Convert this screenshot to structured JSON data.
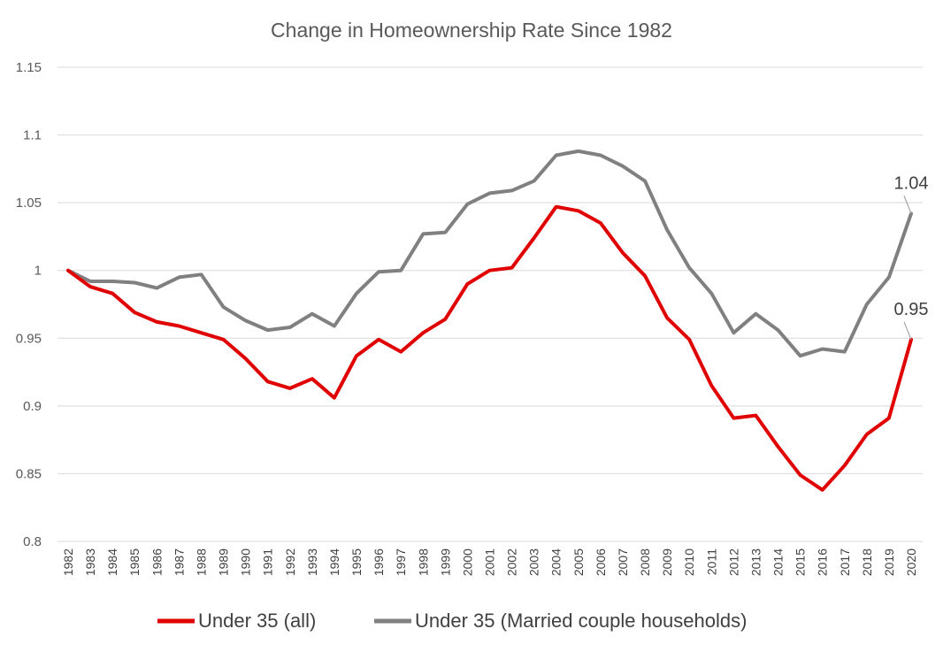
{
  "chart_data": {
    "type": "line",
    "title": "Change in Homeownership Rate Since 1982",
    "xlabel": "",
    "ylabel": "",
    "ylim": [
      0.8,
      1.15
    ],
    "yticks": [
      "0.8",
      "0.85",
      "0.9",
      "0.95",
      "1",
      "1.05",
      "1.1",
      "1.15"
    ],
    "categories": [
      "1982",
      "1983",
      "1984",
      "1985",
      "1986",
      "1987",
      "1988",
      "1989",
      "1990",
      "1991",
      "1992",
      "1993",
      "1994",
      "1995",
      "1996",
      "1997",
      "1998",
      "1999",
      "2000",
      "2001",
      "2002",
      "2003",
      "2004",
      "2005",
      "2006",
      "2007",
      "2008",
      "2009",
      "2010",
      "2011",
      "2012",
      "2013",
      "2014",
      "2015",
      "2016",
      "2017",
      "2018",
      "2019",
      "2020"
    ],
    "series": [
      {
        "name": "Under 35 (all)",
        "color": "#e00000",
        "values": [
          1.0,
          0.988,
          0.983,
          0.969,
          0.962,
          0.959,
          0.954,
          0.949,
          0.935,
          0.918,
          0.913,
          0.92,
          0.906,
          0.937,
          0.949,
          0.94,
          0.954,
          0.964,
          0.99,
          1.0,
          1.002,
          1.024,
          1.047,
          1.044,
          1.035,
          1.013,
          0.996,
          0.965,
          0.949,
          0.915,
          0.891,
          0.893,
          0.87,
          0.849,
          0.838,
          0.856,
          0.879,
          0.891,
          0.949
        ]
      },
      {
        "name": "Under 35 (Married couple households)",
        "color": "#808080",
        "values": [
          1.0,
          0.992,
          0.992,
          0.991,
          0.987,
          0.995,
          0.997,
          0.973,
          0.963,
          0.956,
          0.958,
          0.968,
          0.959,
          0.983,
          0.999,
          1.0,
          1.027,
          1.028,
          1.049,
          1.057,
          1.059,
          1.066,
          1.085,
          1.088,
          1.085,
          1.077,
          1.066,
          1.03,
          1.002,
          0.983,
          0.954,
          0.968,
          0.956,
          0.937,
          0.942,
          0.94,
          0.975,
          0.995,
          1.042
        ]
      }
    ],
    "annotations": [
      {
        "series": 1,
        "label": "1.04"
      },
      {
        "series": 0,
        "label": "0.95"
      }
    ],
    "legend": "bottom"
  }
}
